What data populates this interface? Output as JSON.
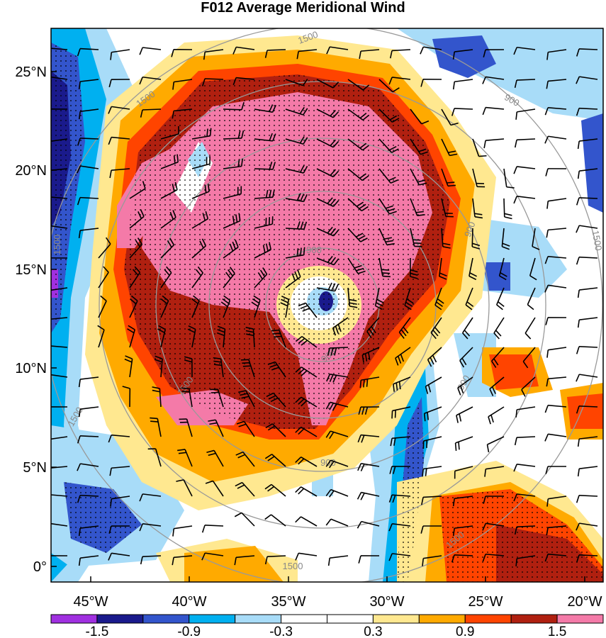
{
  "title": "F012 Average Meridional Wind",
  "lat_labels": [
    "25°N",
    "20°N",
    "15°N",
    "10°N",
    "5°N",
    "0°"
  ],
  "lon_labels": [
    "45°W",
    "40°W",
    "35°W",
    "30°W",
    "25°W",
    "20°W"
  ],
  "colorbar": {
    "colors": [
      "#a030e0",
      "#1a1a8c",
      "#3355cc",
      "#00b0f0",
      "#a8dcf8",
      "#ffffff",
      "#ffffff",
      "#ffe890",
      "#ffaa00",
      "#ff4400",
      "#b02010",
      "#f47aa8"
    ],
    "tick_labels": [
      "-1.5",
      "-0.9",
      "-0.3",
      "0.3",
      "0.9",
      "1.5"
    ]
  },
  "contour_labels": [
    "1500",
    "1500",
    "900",
    "900",
    "1500",
    "1500",
    "900",
    "900",
    "900",
    "1500",
    "1500",
    "1500",
    "900",
    "1500"
  ]
}
